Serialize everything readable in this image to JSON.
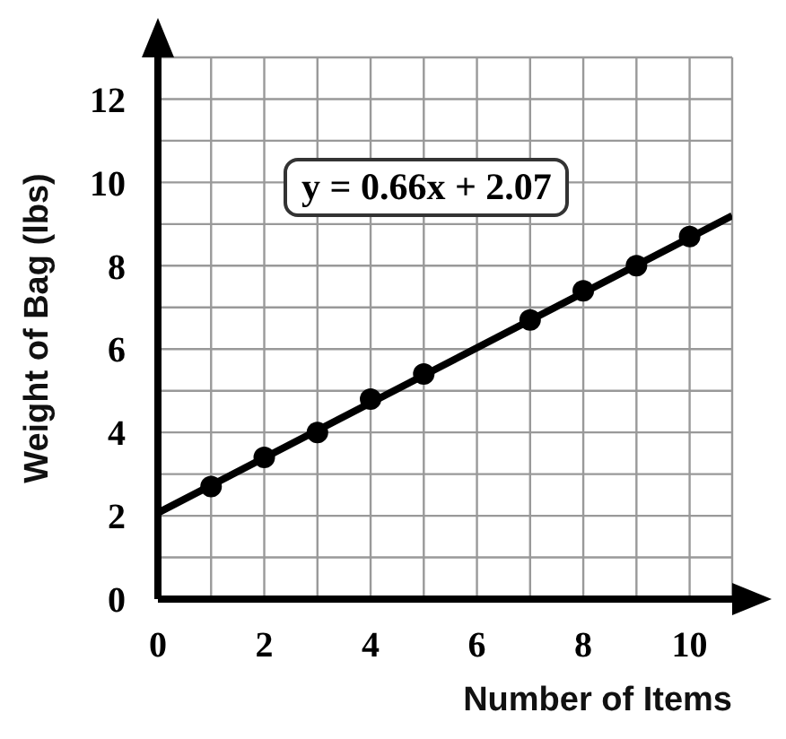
{
  "chart_data": {
    "type": "scatter",
    "xlabel": "Number of Items",
    "ylabel": "Weight of Bag (lbs)",
    "annotations": [
      "y = 0.66x + 2.07"
    ],
    "xlim": [
      0,
      10.8
    ],
    "ylim": [
      0,
      13
    ],
    "xticks": [
      0,
      {
        "value": 1,
        "label": null
      },
      2,
      {
        "value": 3,
        "label": null
      },
      4,
      {
        "value": 5,
        "label": null
      },
      6,
      {
        "value": 7,
        "label": null
      },
      8,
      {
        "value": 9,
        "label": null
      },
      10
    ],
    "yticks": [
      {
        "value": 0,
        "label": "0"
      },
      {
        "value": 1,
        "label": null
      },
      2,
      {
        "value": 3,
        "label": null
      },
      4,
      {
        "value": 5,
        "label": null
      },
      6,
      {
        "value": 7,
        "label": null
      },
      8,
      {
        "value": 9,
        "label": null
      },
      10,
      {
        "value": 11,
        "label": null
      },
      12
    ],
    "grid": true,
    "marker": "circle",
    "series": [
      {
        "color": "#000000",
        "x": [
          1,
          2,
          3,
          4,
          5,
          7,
          8,
          9,
          10
        ],
        "values": [
          2.7,
          3.4,
          4.0,
          4.8,
          5.4,
          6.7,
          7.4,
          8.0,
          8.7
        ]
      },
      {
        "type": "line",
        "color": "#000000",
        "x": [
          0,
          10.8
        ],
        "values": [
          2.07,
          9.2
        ],
        "marker": "none"
      }
    ]
  }
}
